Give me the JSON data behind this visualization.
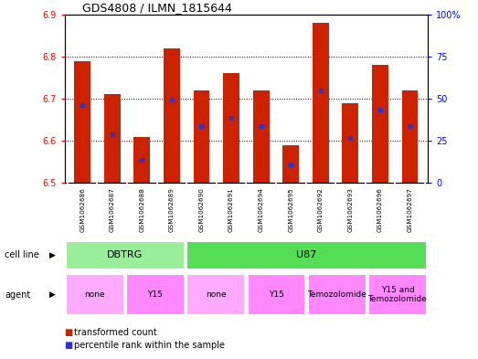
{
  "title": "GDS4808 / ILMN_1815644",
  "samples": [
    "GSM1062686",
    "GSM1062687",
    "GSM1062688",
    "GSM1062689",
    "GSM1062690",
    "GSM1062691",
    "GSM1062694",
    "GSM1062695",
    "GSM1062692",
    "GSM1062693",
    "GSM1062696",
    "GSM1062697"
  ],
  "bar_tops": [
    6.79,
    6.71,
    6.61,
    6.82,
    6.72,
    6.76,
    6.72,
    6.59,
    6.88,
    6.69,
    6.78,
    6.72
  ],
  "bar_bottoms": [
    6.5,
    6.5,
    6.5,
    6.5,
    6.5,
    6.5,
    6.5,
    6.5,
    6.5,
    6.5,
    6.5,
    6.5
  ],
  "blue_dots": [
    6.685,
    6.615,
    6.555,
    6.698,
    6.635,
    6.655,
    6.635,
    6.545,
    6.72,
    6.608,
    6.675,
    6.635
  ],
  "ylim": [
    6.5,
    6.9
  ],
  "yticks_left": [
    6.5,
    6.6,
    6.7,
    6.8,
    6.9
  ],
  "yticks_right_vals": [
    0,
    25,
    50,
    75,
    100
  ],
  "yticks_right_labels": [
    "0",
    "25",
    "50",
    "75",
    "100%"
  ],
  "bar_color": "#cc2200",
  "dot_color": "#3333cc",
  "cell_line_groups": [
    {
      "label": "DBTRG",
      "start": 0,
      "end": 4,
      "color": "#99ee99"
    },
    {
      "label": "U87",
      "start": 4,
      "end": 12,
      "color": "#55dd55"
    }
  ],
  "agent_groups": [
    {
      "label": "none",
      "start": 0,
      "end": 2,
      "color": "#ffaaff"
    },
    {
      "label": "Y15",
      "start": 2,
      "end": 4,
      "color": "#ff88ff"
    },
    {
      "label": "none",
      "start": 4,
      "end": 6,
      "color": "#ffaaff"
    },
    {
      "label": "Y15",
      "start": 6,
      "end": 8,
      "color": "#ff88ff"
    },
    {
      "label": "Temozolomide",
      "start": 8,
      "end": 10,
      "color": "#ff88ff"
    },
    {
      "label": "Y15 and\nTemozolomide",
      "start": 10,
      "end": 12,
      "color": "#ff88ff"
    }
  ],
  "legend_items": [
    {
      "color": "#cc2200",
      "label": "transformed count"
    },
    {
      "color": "#3333cc",
      "label": "percentile rank within the sample"
    }
  ]
}
